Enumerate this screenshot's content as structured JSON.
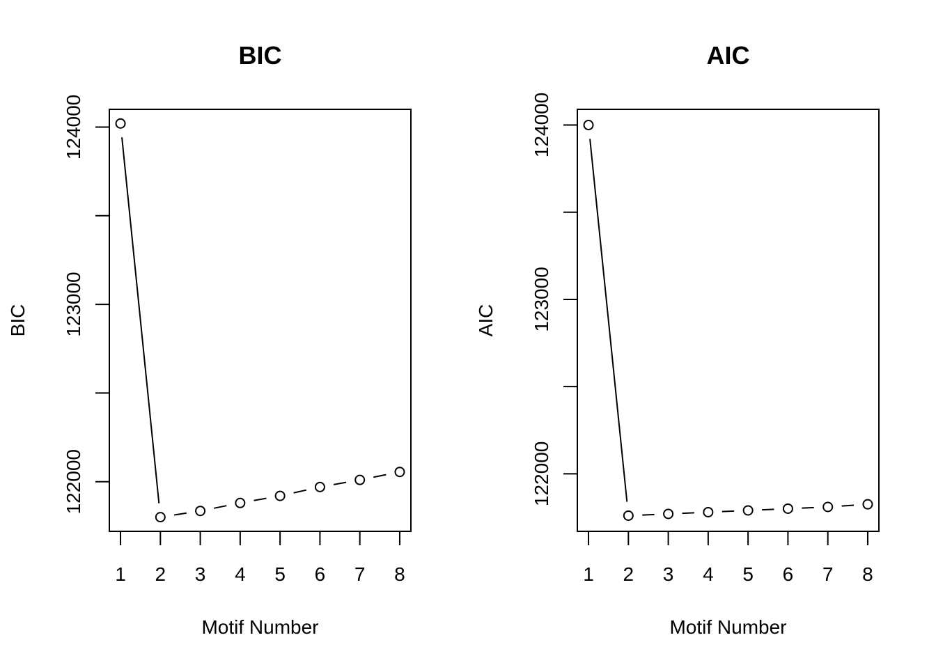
{
  "chart_data": [
    {
      "type": "line",
      "title": "BIC",
      "xlabel": "Motif Number",
      "ylabel": "BIC",
      "x": [
        1,
        2,
        3,
        4,
        5,
        6,
        7,
        8
      ],
      "y": [
        124020,
        121800,
        121835,
        121880,
        121920,
        121970,
        122010,
        122055
      ],
      "xlim": [
        0.72,
        8.28
      ],
      "ylim": [
        121720,
        124100
      ],
      "xticks": [
        1,
        2,
        3,
        4,
        5,
        6,
        7,
        8
      ],
      "yticks": [
        122000,
        122500,
        123000,
        123500,
        124000
      ],
      "ytick_labels": [
        "122000",
        "",
        "123000",
        "",
        "124000"
      ],
      "line_style": "b",
      "grid": false,
      "legend": "none"
    },
    {
      "type": "line",
      "title": "AIC",
      "xlabel": "Motif Number",
      "ylabel": "AIC",
      "x": [
        1,
        2,
        3,
        4,
        5,
        6,
        7,
        8
      ],
      "y": [
        124000,
        121760,
        121770,
        121780,
        121790,
        121800,
        121810,
        121825
      ],
      "xlim": [
        0.72,
        8.28
      ],
      "ylim": [
        121670,
        124090
      ],
      "xticks": [
        1,
        2,
        3,
        4,
        5,
        6,
        7,
        8
      ],
      "yticks": [
        122000,
        122500,
        123000,
        123500,
        124000
      ],
      "ytick_labels": [
        "122000",
        "",
        "123000",
        "",
        "124000"
      ],
      "line_style": "b",
      "grid": false,
      "legend": "none"
    }
  ]
}
